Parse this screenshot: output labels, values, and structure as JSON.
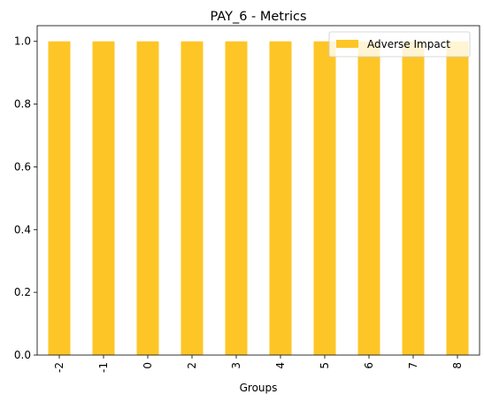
{
  "chart_data": {
    "type": "bar",
    "title": "PAY_6 - Metrics",
    "xlabel": "Groups",
    "ylabel": "",
    "categories": [
      "-2",
      "-1",
      "0",
      "2",
      "3",
      "4",
      "5",
      "6",
      "7",
      "8"
    ],
    "series": [
      {
        "name": "Adverse Impact",
        "values": [
          1.0,
          1.0,
          1.0,
          1.0,
          1.0,
          1.0,
          1.0,
          1.0,
          1.0,
          1.0
        ],
        "color": "#fdc626"
      }
    ],
    "ylim": [
      0,
      1.05
    ],
    "yticks": [
      "0.0",
      "0.2",
      "0.4",
      "0.6",
      "0.8",
      "1.0"
    ],
    "legend_position": "top-right",
    "grid": false
  }
}
